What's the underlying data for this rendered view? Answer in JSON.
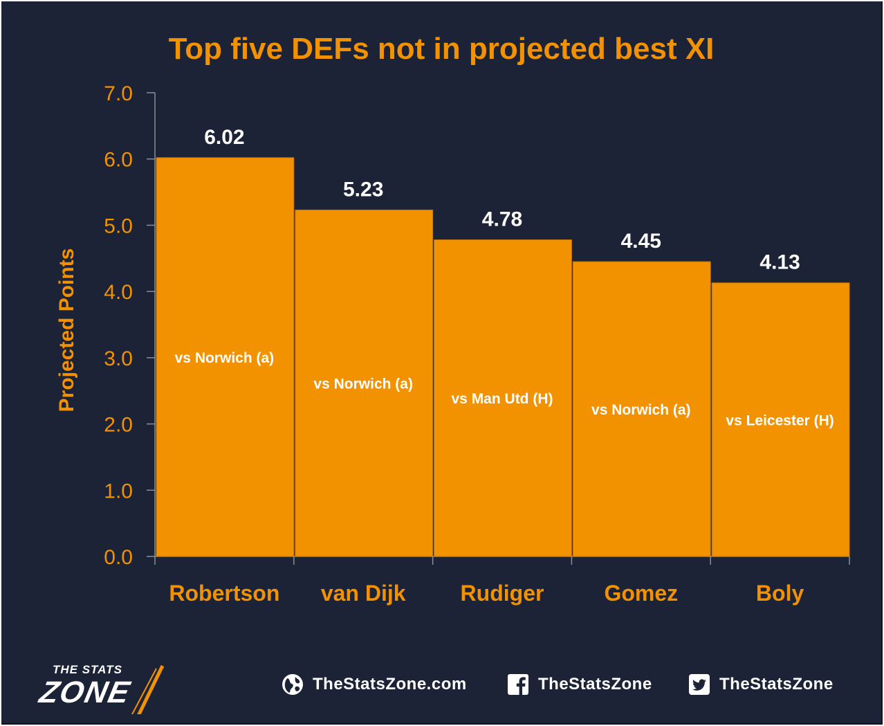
{
  "chart_data": {
    "type": "bar",
    "title": "Top five DEFs not in projected best XI",
    "ylabel": "Projected Points",
    "xlabel": "",
    "ylim": [
      0,
      7
    ],
    "yticks": [
      "0.0",
      "1.0",
      "2.0",
      "3.0",
      "4.0",
      "5.0",
      "6.0",
      "7.0"
    ],
    "categories": [
      "Robertson",
      "van Dijk",
      "Rudiger",
      "Gomez",
      "Boly"
    ],
    "values": [
      6.02,
      5.23,
      4.78,
      4.45,
      4.13
    ],
    "value_labels": [
      "6.02",
      "5.23",
      "4.78",
      "4.45",
      "4.13"
    ],
    "bar_annotations": [
      "vs Norwich (a)",
      "vs Norwich (a)",
      "vs Man Utd (H)",
      "vs Norwich (a)",
      "vs Leicester (H)"
    ],
    "grid": false,
    "legend": "none",
    "colors": {
      "bar": "#f39200",
      "accent": "#f39200",
      "background": "#1d2336",
      "value_label": "#ffffff"
    }
  },
  "footer": {
    "logo": {
      "line1": "THE STATS",
      "line2": "ZONE"
    },
    "website": {
      "icon": "globe-icon",
      "label": "TheStatsZone.com"
    },
    "facebook": {
      "icon": "facebook-icon",
      "label": "TheStatsZone"
    },
    "twitter": {
      "icon": "twitter-icon",
      "label": "TheStatsZone"
    }
  }
}
